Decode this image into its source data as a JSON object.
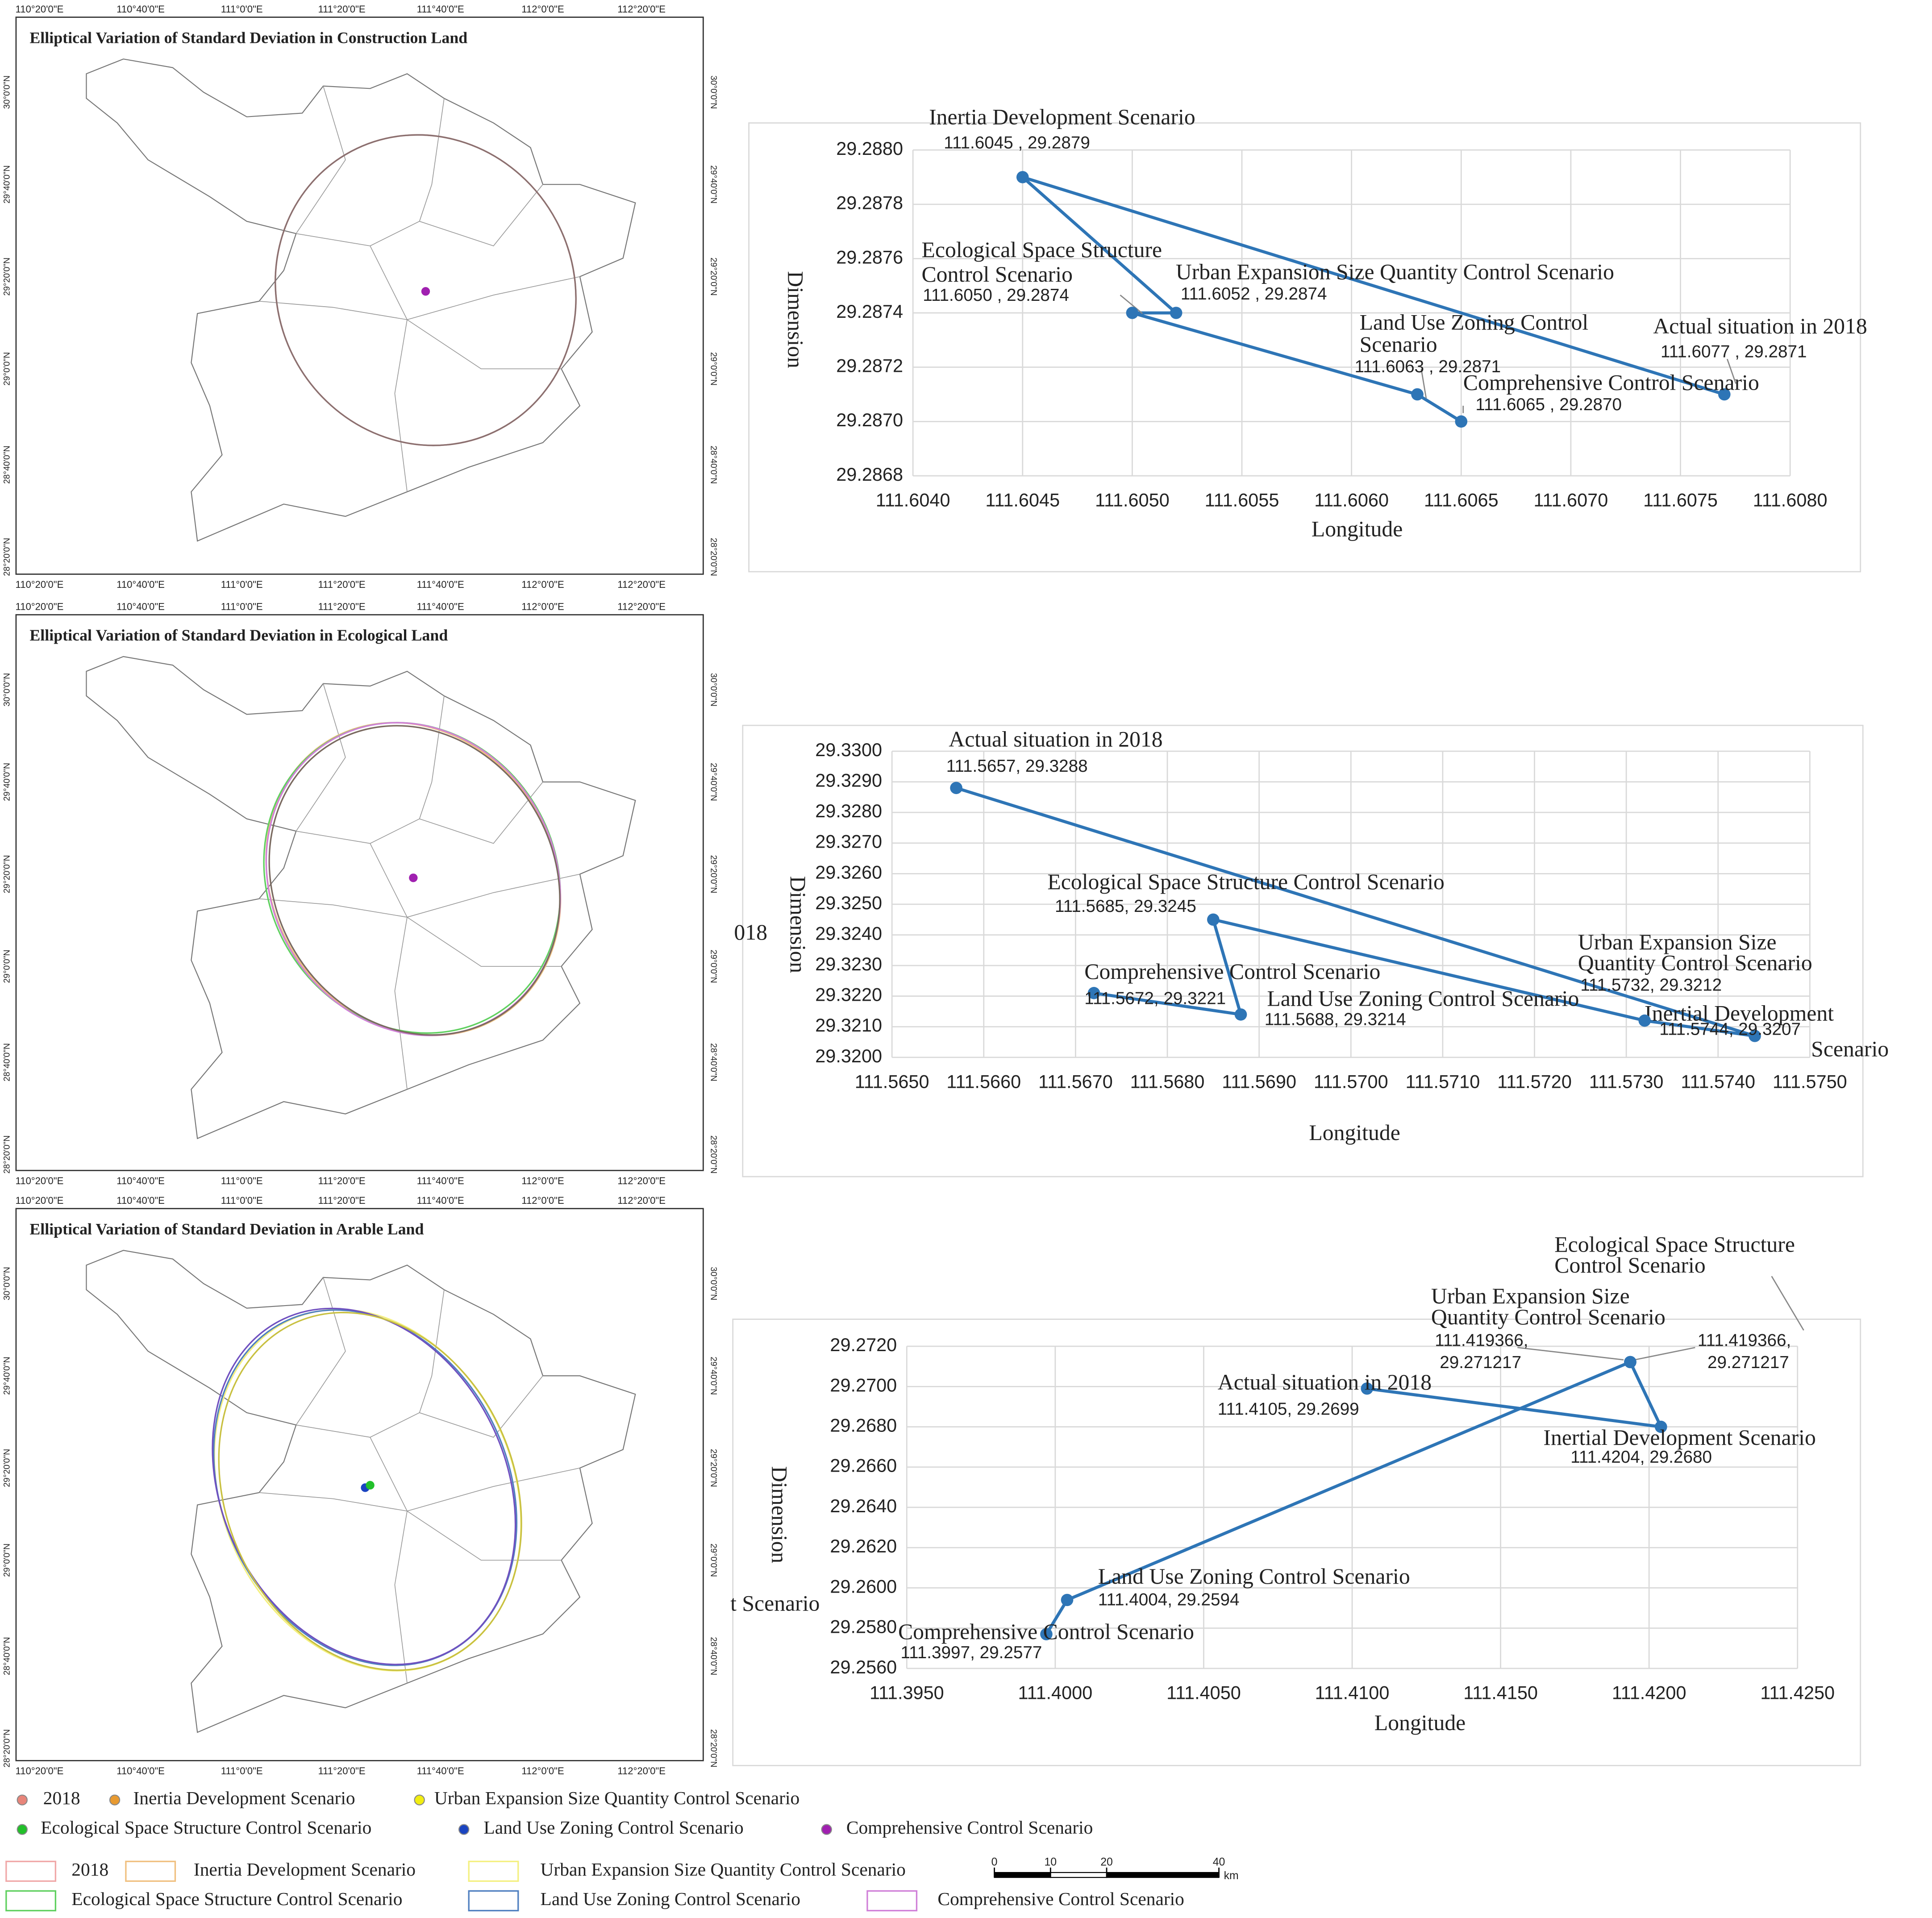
{
  "maps": [
    {
      "title": "Elliptical Variation of Standard Deviation in Construction Land",
      "lon_labels": [
        "110°20'0\"E",
        "110°40'0\"E",
        "111°0'0\"E",
        "111°20'0\"E",
        "111°40'0\"E",
        "112°0'0\"E",
        "112°20'0\"E"
      ],
      "lat_labels": [
        "30°0'0\"N",
        "29°40'0\"N",
        "29°20'0\"N",
        "29°0'0\"N",
        "28°40'0\"N",
        "28°20'0\"N"
      ]
    },
    {
      "title": "Elliptical Variation of Standard Deviation in Ecological Land",
      "lon_labels": [
        "110°20'0\"E",
        "110°40'0\"E",
        "111°0'0\"E",
        "111°20'0\"E",
        "111°40'0\"E",
        "112°0'0\"E",
        "112°20'0\"E"
      ],
      "lat_labels": [
        "30°0'0\"N",
        "29°40'0\"N",
        "29°20'0\"N",
        "29°0'0\"N",
        "28°40'0\"N",
        "28°20'0\"N"
      ]
    },
    {
      "title": "Elliptical Variation of Standard Deviation in Arable Land",
      "lon_labels": [
        "110°20'0\"E",
        "110°40'0\"E",
        "111°0'0\"E",
        "111°20'0\"E",
        "111°40'0\"E",
        "112°0'0\"E",
        "112°20'0\"E"
      ],
      "lat_labels": [
        "30°0'0\"N",
        "29°40'0\"N",
        "29°20'0\"N",
        "29°0'0\"N",
        "28°40'0\"N",
        "28°20'0\"N"
      ]
    }
  ],
  "chart_data": [
    {
      "type": "line",
      "xlabel": "Longitude",
      "ylabel": "Dimension",
      "color": "#2e75b6",
      "grid": true,
      "x": [
        111.6077,
        111.6045,
        111.6052,
        111.605,
        111.6063,
        111.6065
      ],
      "values": [
        29.2871,
        29.2879,
        29.2874,
        29.2874,
        29.2871,
        29.287
      ],
      "point_names": [
        [
          "Actual situation in 2018"
        ],
        [
          "Inertia Development Scenario"
        ],
        [
          "Urban Expansion Size Quantity Control Scenario"
        ],
        [
          "Ecological Space Structure",
          "Control Scenario"
        ],
        [
          "Land Use Zoning Control",
          "Scenario"
        ],
        [
          "Comprehensive Control Scenario"
        ]
      ],
      "value_labels": [
        [
          "111.6077 , 29.2871"
        ],
        [
          "111.6045 , 29.2879"
        ],
        [
          "111.6052 , 29.2874"
        ],
        [
          "111.6050 , 29.2874"
        ],
        [
          "111.6063 , 29.2871"
        ],
        [
          "111.6065 , 29.2870"
        ]
      ],
      "xlim": [
        111.604,
        111.608
      ],
      "xticks": [
        {
          "value": 111.604,
          "label": "111.6040"
        },
        {
          "value": 111.6045,
          "label": "111.6045"
        },
        {
          "value": 111.605,
          "label": "111.6050"
        },
        {
          "value": 111.6055,
          "label": "111.6055"
        },
        {
          "value": 111.606,
          "label": "111.6060"
        },
        {
          "value": 111.6065,
          "label": "111.6065"
        },
        {
          "value": 111.607,
          "label": "111.6070"
        },
        {
          "value": 111.6075,
          "label": "111.6075"
        },
        {
          "value": 111.608,
          "label": "111.6080"
        }
      ],
      "ylim": [
        29.2868,
        29.288
      ],
      "yticks": [
        {
          "value": 29.2868,
          "label": "29.2868"
        },
        {
          "value": 29.287,
          "label": "29.2870"
        },
        {
          "value": 29.2872,
          "label": "29.2872"
        },
        {
          "value": 29.2874,
          "label": "29.2874"
        },
        {
          "value": 29.2876,
          "label": "29.2876"
        },
        {
          "value": 29.2878,
          "label": "29.2878"
        },
        {
          "value": 29.288,
          "label": "29.2880"
        }
      ]
    },
    {
      "type": "line",
      "xlabel": "Longitude",
      "ylabel": "Dimension",
      "color": "#2e75b6",
      "grid": true,
      "x": [
        111.5657,
        111.5744,
        111.5732,
        111.5685,
        111.5688,
        111.5672
      ],
      "values": [
        29.3288,
        29.3207,
        29.3212,
        29.3245,
        29.3214,
        29.3221
      ],
      "point_names": [
        [
          "Actual situation in 2018"
        ],
        [
          "Inertial Development",
          "Scenario"
        ],
        [
          "Urban Expansion Size",
          "Quantity Control Scenario"
        ],
        [
          "Ecological Space Structure Control Scenario"
        ],
        [
          "Land Use Zoning Control Scenario"
        ],
        [
          "Comprehensive Control Scenario"
        ]
      ],
      "value_labels": [
        [
          "111.5657, 29.3288"
        ],
        [
          "111.5744, 29.3207"
        ],
        [
          "111.5732, 29.3212"
        ],
        [
          "111.5685, 29.3245"
        ],
        [
          "111.5688, 29.3214"
        ],
        [
          "111.5672, 29.3221"
        ]
      ],
      "clipped_text": "018",
      "xlim": [
        111.565,
        111.575
      ],
      "xticks": [
        {
          "value": 111.565,
          "label": "111.5650"
        },
        {
          "value": 111.566,
          "label": "111.5660"
        },
        {
          "value": 111.567,
          "label": "111.5670"
        },
        {
          "value": 111.568,
          "label": "111.5680"
        },
        {
          "value": 111.569,
          "label": "111.5690"
        },
        {
          "value": 111.57,
          "label": "111.5700"
        },
        {
          "value": 111.571,
          "label": "111.5710"
        },
        {
          "value": 111.572,
          "label": "111.5720"
        },
        {
          "value": 111.573,
          "label": "111.5730"
        },
        {
          "value": 111.574,
          "label": "111.5740"
        },
        {
          "value": 111.575,
          "label": "111.5750"
        }
      ],
      "ylim": [
        29.32,
        29.33
      ],
      "yticks": [
        {
          "value": 29.32,
          "label": "29.3200"
        },
        {
          "value": 29.321,
          "label": "29.3210"
        },
        {
          "value": 29.322,
          "label": "29.3220"
        },
        {
          "value": 29.323,
          "label": "29.3230"
        },
        {
          "value": 29.324,
          "label": "29.3240"
        },
        {
          "value": 29.325,
          "label": "29.3250"
        },
        {
          "value": 29.326,
          "label": "29.3260"
        },
        {
          "value": 29.327,
          "label": "29.3270"
        },
        {
          "value": 29.328,
          "label": "29.3280"
        },
        {
          "value": 29.329,
          "label": "29.3290"
        },
        {
          "value": 29.33,
          "label": "29.3300"
        }
      ]
    },
    {
      "type": "line",
      "xlabel": "Longitude",
      "ylabel": "Dimension",
      "color": "#2e75b6",
      "grid": true,
      "x": [
        111.4105,
        111.4204,
        111.419366,
        111.419366,
        111.4004,
        111.3997
      ],
      "values": [
        29.2699,
        29.268,
        29.271217,
        29.271217,
        29.2594,
        29.2577
      ],
      "point_names": [
        [
          "Actual situation in 2018"
        ],
        [
          "Inertial Development Scenario"
        ],
        [
          "Urban Expansion Size",
          "Quantity Control Scenario"
        ],
        [
          "Ecological Space Structure",
          "Control Scenario"
        ],
        [
          "Land Use Zoning Control Scenario"
        ],
        [
          "Comprehensive Control Scenario"
        ]
      ],
      "value_labels": [
        [
          "111.4105, 29.2699"
        ],
        [
          "111.4204, 29.2680"
        ],
        [
          "111.419366,",
          "29.271217"
        ],
        [
          "111.419366,",
          "29.271217"
        ],
        [
          "111.4004, 29.2594"
        ],
        [
          "111.3997, 29.2577"
        ]
      ],
      "clipped_text": "t Scenario",
      "xlim": [
        111.395,
        111.425
      ],
      "xticks": [
        {
          "value": 111.395,
          "label": "111.3950"
        },
        {
          "value": 111.4,
          "label": "111.4000"
        },
        {
          "value": 111.405,
          "label": "111.4050"
        },
        {
          "value": 111.41,
          "label": "111.4100"
        },
        {
          "value": 111.415,
          "label": "111.4150"
        },
        {
          "value": 111.42,
          "label": "111.4200"
        },
        {
          "value": 111.425,
          "label": "111.4250"
        }
      ],
      "ylim": [
        29.256,
        29.272
      ],
      "yticks": [
        {
          "value": 29.256,
          "label": "29.2560"
        },
        {
          "value": 29.258,
          "label": "29.2580"
        },
        {
          "value": 29.26,
          "label": "29.2600"
        },
        {
          "value": 29.262,
          "label": "29.2620"
        },
        {
          "value": 29.264,
          "label": "29.2640"
        },
        {
          "value": 29.266,
          "label": "29.2660"
        },
        {
          "value": 29.268,
          "label": "29.2680"
        },
        {
          "value": 29.27,
          "label": "29.2700"
        },
        {
          "value": 29.272,
          "label": "29.2720"
        }
      ]
    }
  ],
  "legend": {
    "points": [
      {
        "label": "2018",
        "color": "#e8857a"
      },
      {
        "label": "Inertia Development Scenario",
        "color": "#e89a30"
      },
      {
        "label": "Urban Expansion Size Quantity Control Scenario",
        "color": "#f2ee10"
      },
      {
        "label": "Ecological Space Structure Control Scenario",
        "color": "#22c02a"
      },
      {
        "label": "Land Use Zoning Control Scenario",
        "color": "#1a44c0"
      },
      {
        "label": "Comprehensive Control Scenario",
        "color": "#a020b0"
      }
    ],
    "boxes": [
      {
        "label": "2018",
        "color": "#f0a8a8"
      },
      {
        "label": "Inertia Development Scenario",
        "color": "#f0c080"
      },
      {
        "label": "Urban Expansion Size Quantity Control Scenario",
        "color": "#f4f080"
      },
      {
        "label": "Ecological Space Structure Control Scenario",
        "color": "#60d060"
      },
      {
        "label": "Land Use Zoning Control Scenario",
        "color": "#5080c0"
      },
      {
        "label": "Comprehensive Control Scenario",
        "color": "#d080d8"
      }
    ]
  },
  "scale_bar": {
    "ticks": [
      0,
      10,
      20,
      40
    ],
    "unit": "km"
  }
}
